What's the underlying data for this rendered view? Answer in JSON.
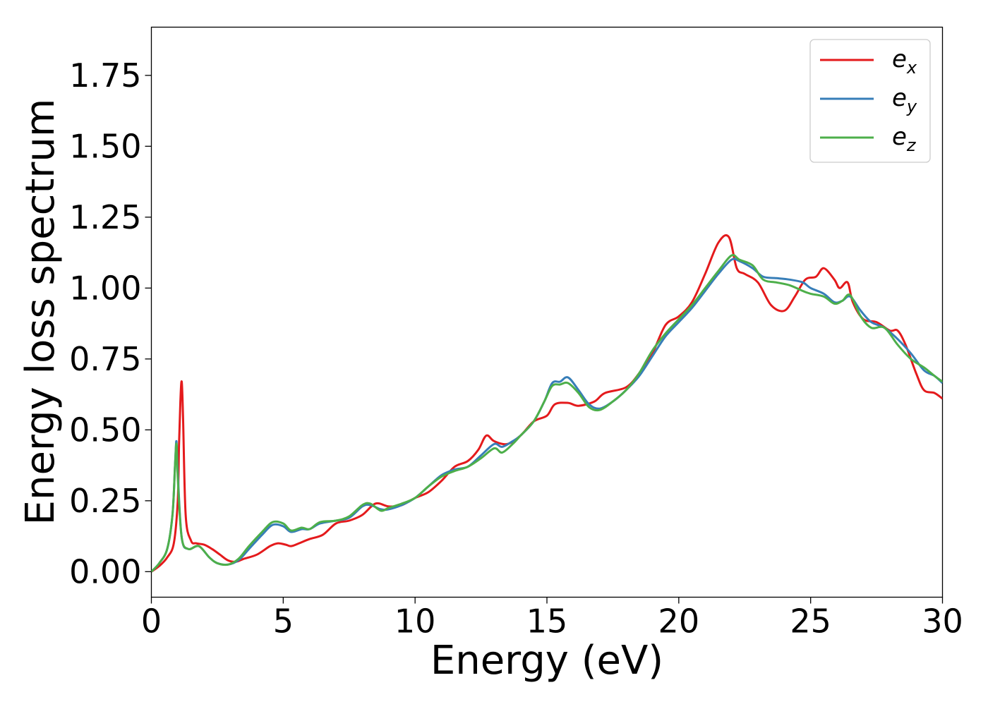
{
  "chart_data": {
    "type": "line",
    "title": "",
    "xlabel": "Energy (eV)",
    "ylabel": "Energy loss spectrum",
    "xlim": [
      0,
      30
    ],
    "ylim": [
      -0.09,
      1.92
    ],
    "xticks": [
      0,
      5,
      10,
      15,
      20,
      25,
      30
    ],
    "xtick_labels": [
      "0",
      "5",
      "10",
      "15",
      "20",
      "25",
      "30"
    ],
    "yticks": [
      0.0,
      0.25,
      0.5,
      0.75,
      1.0,
      1.25,
      1.5,
      1.75
    ],
    "ytick_labels": [
      "0.00",
      "0.25",
      "0.50",
      "0.75",
      "1.00",
      "1.25",
      "1.50",
      "1.75"
    ],
    "grid": false,
    "legend_position": "top-right",
    "series": [
      {
        "name": "e_x",
        "legend_base": "e",
        "legend_sub": "x",
        "color": "#e41a1c",
        "points": [
          [
            0,
            0
          ],
          [
            0.3,
            0.02
          ],
          [
            0.6,
            0.05
          ],
          [
            0.85,
            0.1
          ],
          [
            1.0,
            0.25
          ],
          [
            1.05,
            0.45
          ],
          [
            1.1,
            0.6
          ],
          [
            1.15,
            0.67
          ],
          [
            1.2,
            0.55
          ],
          [
            1.3,
            0.2
          ],
          [
            1.5,
            0.11
          ],
          [
            1.7,
            0.1
          ],
          [
            2.0,
            0.095
          ],
          [
            2.3,
            0.08
          ],
          [
            2.6,
            0.06
          ],
          [
            2.9,
            0.04
          ],
          [
            3.2,
            0.035
          ],
          [
            3.5,
            0.045
          ],
          [
            4.0,
            0.06
          ],
          [
            4.5,
            0.09
          ],
          [
            4.8,
            0.1
          ],
          [
            5.1,
            0.095
          ],
          [
            5.3,
            0.09
          ],
          [
            5.6,
            0.1
          ],
          [
            6.0,
            0.115
          ],
          [
            6.5,
            0.13
          ],
          [
            7.0,
            0.17
          ],
          [
            7.5,
            0.18
          ],
          [
            8.0,
            0.2
          ],
          [
            8.5,
            0.24
          ],
          [
            9.0,
            0.23
          ],
          [
            9.5,
            0.235
          ],
          [
            10.0,
            0.26
          ],
          [
            10.5,
            0.28
          ],
          [
            11.0,
            0.32
          ],
          [
            11.5,
            0.37
          ],
          [
            12.0,
            0.39
          ],
          [
            12.4,
            0.43
          ],
          [
            12.7,
            0.48
          ],
          [
            13.0,
            0.46
          ],
          [
            13.5,
            0.45
          ],
          [
            14.0,
            0.48
          ],
          [
            14.5,
            0.53
          ],
          [
            15.0,
            0.55
          ],
          [
            15.3,
            0.59
          ],
          [
            15.8,
            0.595
          ],
          [
            16.2,
            0.585
          ],
          [
            16.8,
            0.6
          ],
          [
            17.2,
            0.63
          ],
          [
            18.0,
            0.65
          ],
          [
            18.5,
            0.7
          ],
          [
            19.0,
            0.77
          ],
          [
            19.5,
            0.87
          ],
          [
            20.0,
            0.9
          ],
          [
            20.5,
            0.95
          ],
          [
            21.0,
            1.05
          ],
          [
            21.5,
            1.16
          ],
          [
            21.9,
            1.18
          ],
          [
            22.2,
            1.07
          ],
          [
            22.5,
            1.05
          ],
          [
            23.0,
            1.02
          ],
          [
            23.5,
            0.94
          ],
          [
            24.0,
            0.92
          ],
          [
            24.4,
            0.97
          ],
          [
            24.8,
            1.03
          ],
          [
            25.2,
            1.04
          ],
          [
            25.5,
            1.07
          ],
          [
            25.9,
            1.03
          ],
          [
            26.1,
            1.0
          ],
          [
            26.4,
            1.02
          ],
          [
            26.6,
            0.95
          ],
          [
            27.0,
            0.89
          ],
          [
            27.5,
            0.88
          ],
          [
            28.0,
            0.85
          ],
          [
            28.3,
            0.85
          ],
          [
            28.6,
            0.8
          ],
          [
            29.0,
            0.7
          ],
          [
            29.3,
            0.64
          ],
          [
            29.7,
            0.63
          ],
          [
            30.0,
            0.61
          ]
        ]
      },
      {
        "name": "e_y",
        "legend_base": "e",
        "legend_sub": "y",
        "color": "#377eb8",
        "points": [
          [
            0,
            0
          ],
          [
            0.3,
            0.03
          ],
          [
            0.6,
            0.08
          ],
          [
            0.8,
            0.2
          ],
          [
            0.9,
            0.38
          ],
          [
            0.95,
            0.46
          ],
          [
            1.0,
            0.35
          ],
          [
            1.15,
            0.12
          ],
          [
            1.4,
            0.08
          ],
          [
            1.8,
            0.09
          ],
          [
            2.2,
            0.05
          ],
          [
            2.5,
            0.03
          ],
          [
            2.9,
            0.025
          ],
          [
            3.3,
            0.04
          ],
          [
            3.7,
            0.08
          ],
          [
            4.2,
            0.13
          ],
          [
            4.6,
            0.165
          ],
          [
            5.0,
            0.16
          ],
          [
            5.3,
            0.14
          ],
          [
            5.7,
            0.15
          ],
          [
            6.0,
            0.15
          ],
          [
            6.4,
            0.17
          ],
          [
            7.0,
            0.18
          ],
          [
            7.5,
            0.19
          ],
          [
            8.0,
            0.23
          ],
          [
            8.3,
            0.235
          ],
          [
            8.7,
            0.22
          ],
          [
            9.0,
            0.22
          ],
          [
            9.5,
            0.235
          ],
          [
            10.0,
            0.26
          ],
          [
            10.5,
            0.3
          ],
          [
            11.0,
            0.34
          ],
          [
            11.5,
            0.36
          ],
          [
            12.0,
            0.37
          ],
          [
            12.5,
            0.41
          ],
          [
            13.0,
            0.45
          ],
          [
            13.3,
            0.44
          ],
          [
            13.7,
            0.46
          ],
          [
            14.0,
            0.48
          ],
          [
            14.5,
            0.53
          ],
          [
            14.9,
            0.6
          ],
          [
            15.2,
            0.665
          ],
          [
            15.5,
            0.67
          ],
          [
            15.8,
            0.685
          ],
          [
            16.2,
            0.64
          ],
          [
            16.6,
            0.59
          ],
          [
            17.0,
            0.575
          ],
          [
            17.5,
            0.6
          ],
          [
            18.0,
            0.64
          ],
          [
            18.5,
            0.69
          ],
          [
            19.0,
            0.76
          ],
          [
            19.5,
            0.83
          ],
          [
            20.0,
            0.88
          ],
          [
            20.5,
            0.93
          ],
          [
            21.0,
            0.99
          ],
          [
            21.5,
            1.05
          ],
          [
            22.0,
            1.1
          ],
          [
            22.3,
            1.095
          ],
          [
            22.8,
            1.07
          ],
          [
            23.2,
            1.04
          ],
          [
            23.7,
            1.035
          ],
          [
            24.2,
            1.03
          ],
          [
            24.7,
            1.02
          ],
          [
            25.0,
            1.0
          ],
          [
            25.5,
            0.98
          ],
          [
            25.9,
            0.95
          ],
          [
            26.2,
            0.955
          ],
          [
            26.5,
            0.97
          ],
          [
            26.9,
            0.92
          ],
          [
            27.3,
            0.88
          ],
          [
            27.8,
            0.86
          ],
          [
            28.3,
            0.82
          ],
          [
            28.8,
            0.77
          ],
          [
            29.3,
            0.71
          ],
          [
            29.7,
            0.69
          ],
          [
            30.0,
            0.665
          ]
        ]
      },
      {
        "name": "e_z",
        "legend_base": "e",
        "legend_sub": "z",
        "color": "#4daf4a",
        "points": [
          [
            0,
            0
          ],
          [
            0.3,
            0.03
          ],
          [
            0.6,
            0.08
          ],
          [
            0.8,
            0.2
          ],
          [
            0.9,
            0.38
          ],
          [
            0.95,
            0.45
          ],
          [
            1.0,
            0.33
          ],
          [
            1.15,
            0.12
          ],
          [
            1.4,
            0.08
          ],
          [
            1.8,
            0.09
          ],
          [
            2.2,
            0.05
          ],
          [
            2.5,
            0.03
          ],
          [
            2.9,
            0.025
          ],
          [
            3.3,
            0.045
          ],
          [
            3.7,
            0.09
          ],
          [
            4.2,
            0.14
          ],
          [
            4.6,
            0.175
          ],
          [
            5.0,
            0.17
          ],
          [
            5.3,
            0.145
          ],
          [
            5.7,
            0.155
          ],
          [
            6.0,
            0.15
          ],
          [
            6.4,
            0.175
          ],
          [
            7.0,
            0.18
          ],
          [
            7.5,
            0.195
          ],
          [
            8.0,
            0.235
          ],
          [
            8.3,
            0.24
          ],
          [
            8.7,
            0.215
          ],
          [
            9.0,
            0.225
          ],
          [
            9.5,
            0.24
          ],
          [
            10.0,
            0.26
          ],
          [
            10.5,
            0.3
          ],
          [
            11.0,
            0.335
          ],
          [
            11.5,
            0.355
          ],
          [
            12.0,
            0.37
          ],
          [
            12.5,
            0.4
          ],
          [
            13.0,
            0.435
          ],
          [
            13.3,
            0.42
          ],
          [
            13.7,
            0.45
          ],
          [
            14.0,
            0.48
          ],
          [
            14.5,
            0.53
          ],
          [
            14.9,
            0.6
          ],
          [
            15.2,
            0.655
          ],
          [
            15.5,
            0.66
          ],
          [
            15.8,
            0.665
          ],
          [
            16.2,
            0.63
          ],
          [
            16.6,
            0.58
          ],
          [
            17.0,
            0.57
          ],
          [
            17.5,
            0.6
          ],
          [
            18.0,
            0.64
          ],
          [
            18.5,
            0.7
          ],
          [
            19.0,
            0.78
          ],
          [
            19.5,
            0.84
          ],
          [
            20.0,
            0.89
          ],
          [
            20.5,
            0.94
          ],
          [
            21.0,
            1.0
          ],
          [
            21.5,
            1.06
          ],
          [
            22.0,
            1.115
          ],
          [
            22.3,
            1.1
          ],
          [
            22.8,
            1.08
          ],
          [
            23.2,
            1.03
          ],
          [
            23.7,
            1.02
          ],
          [
            24.2,
            1.01
          ],
          [
            24.7,
            0.99
          ],
          [
            25.0,
            0.98
          ],
          [
            25.5,
            0.97
          ],
          [
            25.9,
            0.945
          ],
          [
            26.2,
            0.955
          ],
          [
            26.5,
            0.975
          ],
          [
            26.9,
            0.9
          ],
          [
            27.3,
            0.86
          ],
          [
            27.8,
            0.86
          ],
          [
            28.3,
            0.8
          ],
          [
            28.8,
            0.75
          ],
          [
            29.3,
            0.72
          ],
          [
            29.7,
            0.69
          ],
          [
            30.0,
            0.67
          ]
        ]
      }
    ]
  }
}
